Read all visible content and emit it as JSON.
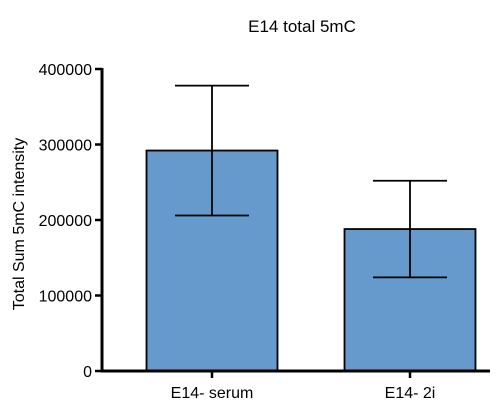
{
  "chart_data": {
    "type": "bar",
    "title": "E14 total 5mC",
    "xlabel": "",
    "ylabel": "Total Sum 5mC intensity",
    "categories": [
      "E14- serum",
      "E14- 2i"
    ],
    "values": [
      292000,
      188000
    ],
    "error_low": [
      206000,
      124000
    ],
    "error_high": [
      378000,
      252000
    ],
    "ylim": [
      0,
      400000
    ],
    "yticks": [
      0,
      100000,
      200000,
      300000,
      400000
    ],
    "ytick_labels": [
      "0",
      "100000",
      "200000",
      "300000",
      "400000"
    ],
    "grid": false,
    "bar_color": "#6699cc",
    "bar_edge_color": "#000000"
  }
}
